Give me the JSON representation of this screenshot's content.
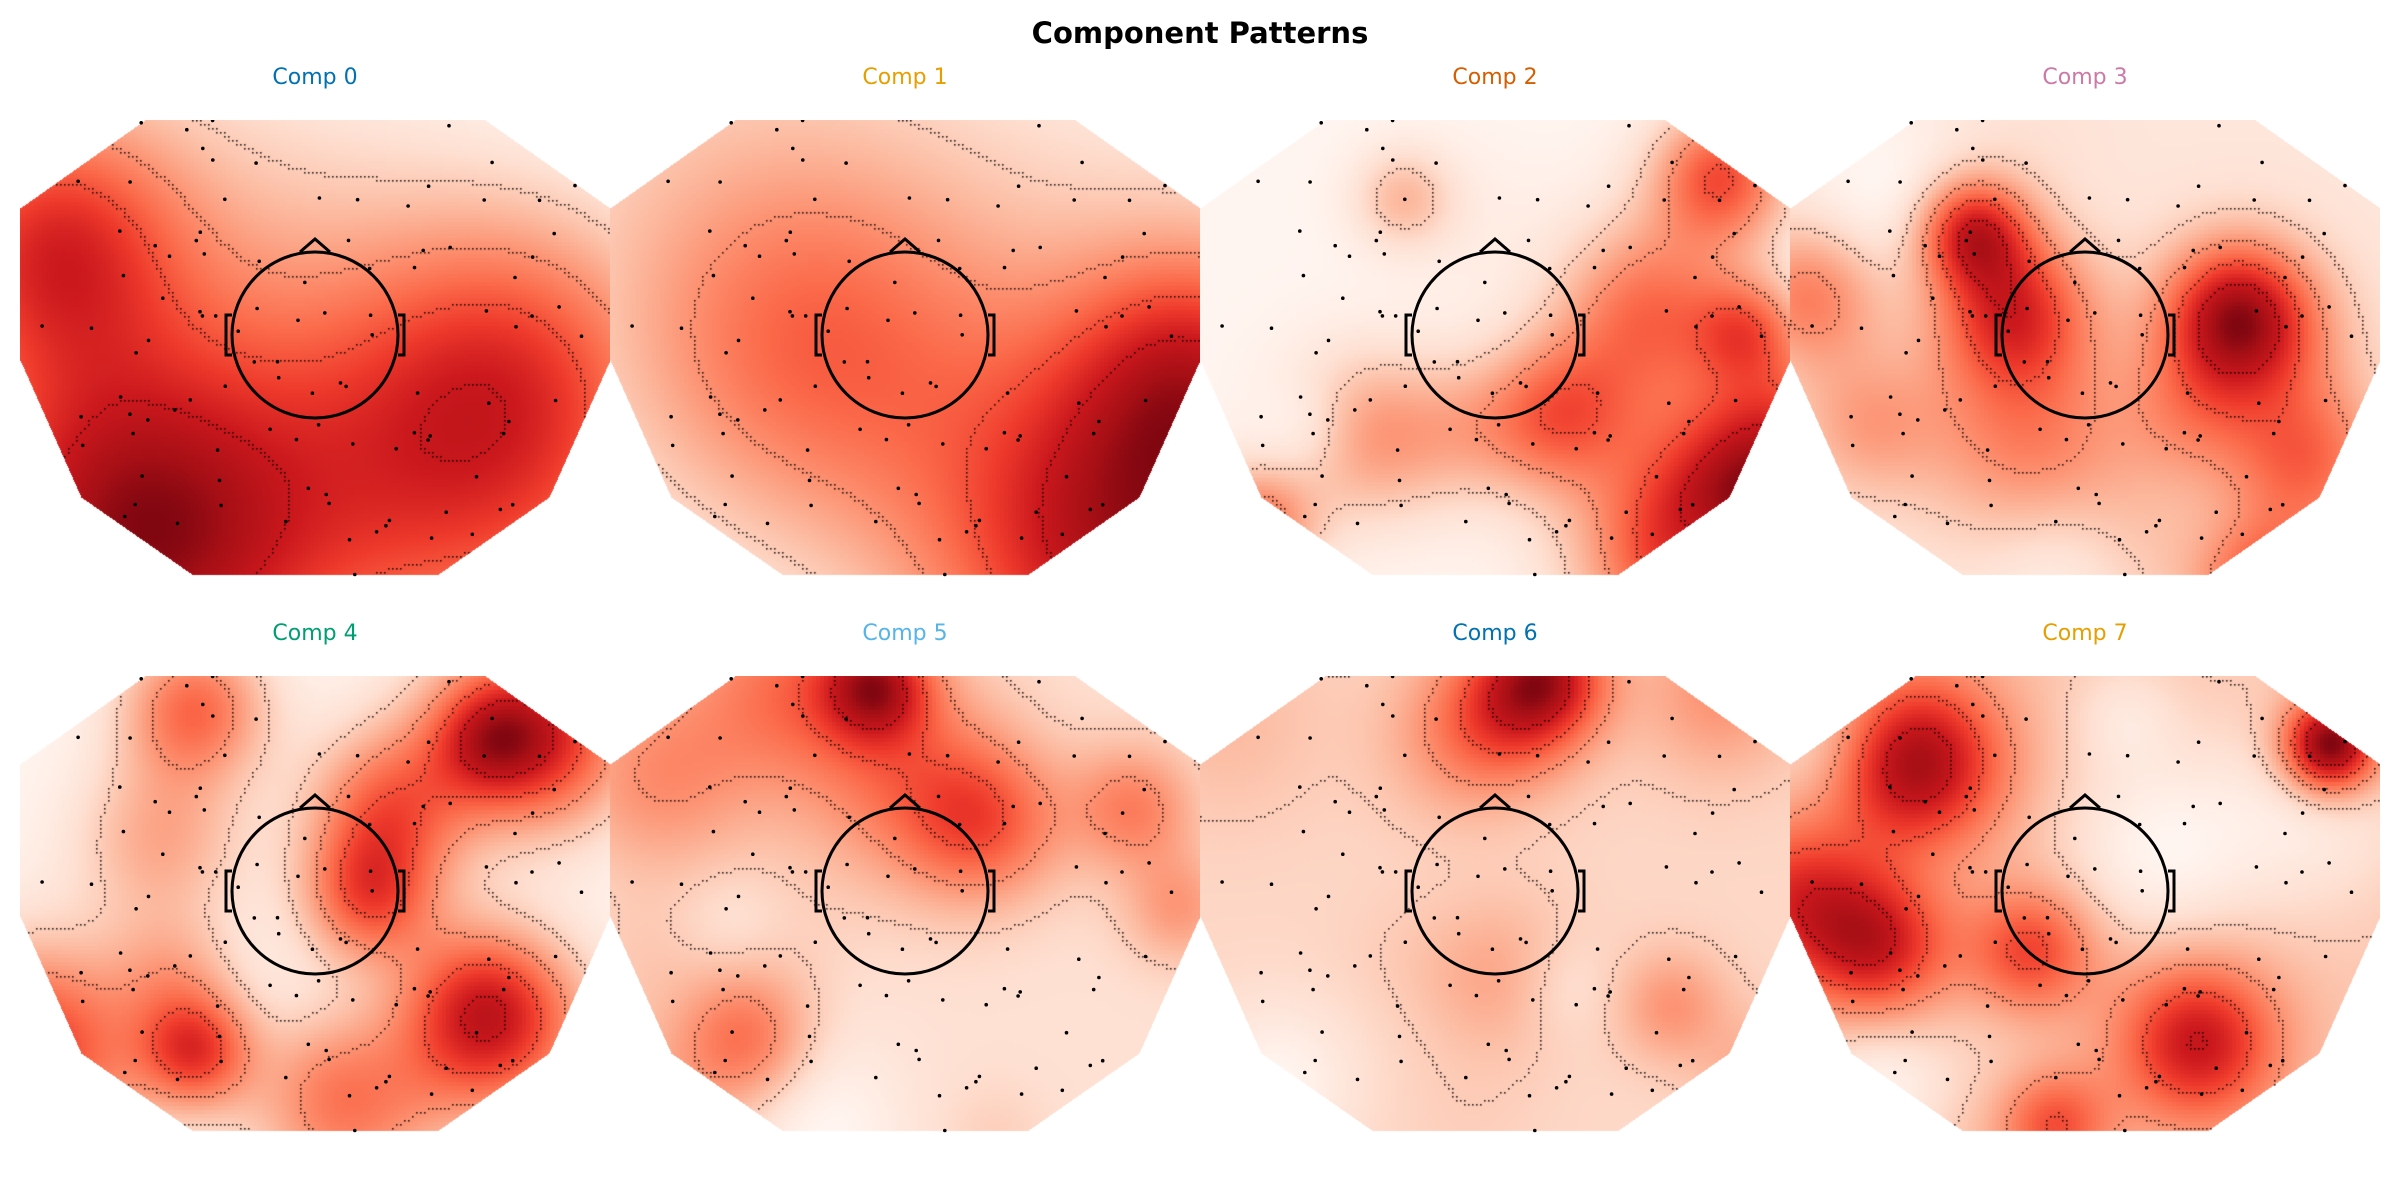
{
  "figure": {
    "title": "Component Patterns"
  },
  "chart_data": {
    "type": "heatmap",
    "title": "Component Patterns",
    "colormap": "Reds",
    "grid": false,
    "panels": [
      {
        "title": "Comp 0",
        "title_color": "#0072B2"
      },
      {
        "title": "Comp 1",
        "title_color": "#E69F00"
      },
      {
        "title": "Comp 2",
        "title_color": "#D55E00"
      },
      {
        "title": "Comp 3",
        "title_color": "#CC79A7"
      },
      {
        "title": "Comp 4",
        "title_color": "#009E73"
      },
      {
        "title": "Comp 5",
        "title_color": "#56B4E9"
      },
      {
        "title": "Comp 6",
        "title_color": "#0072B2"
      },
      {
        "title": "Comp 7",
        "title_color": "#E69F00"
      }
    ]
  }
}
